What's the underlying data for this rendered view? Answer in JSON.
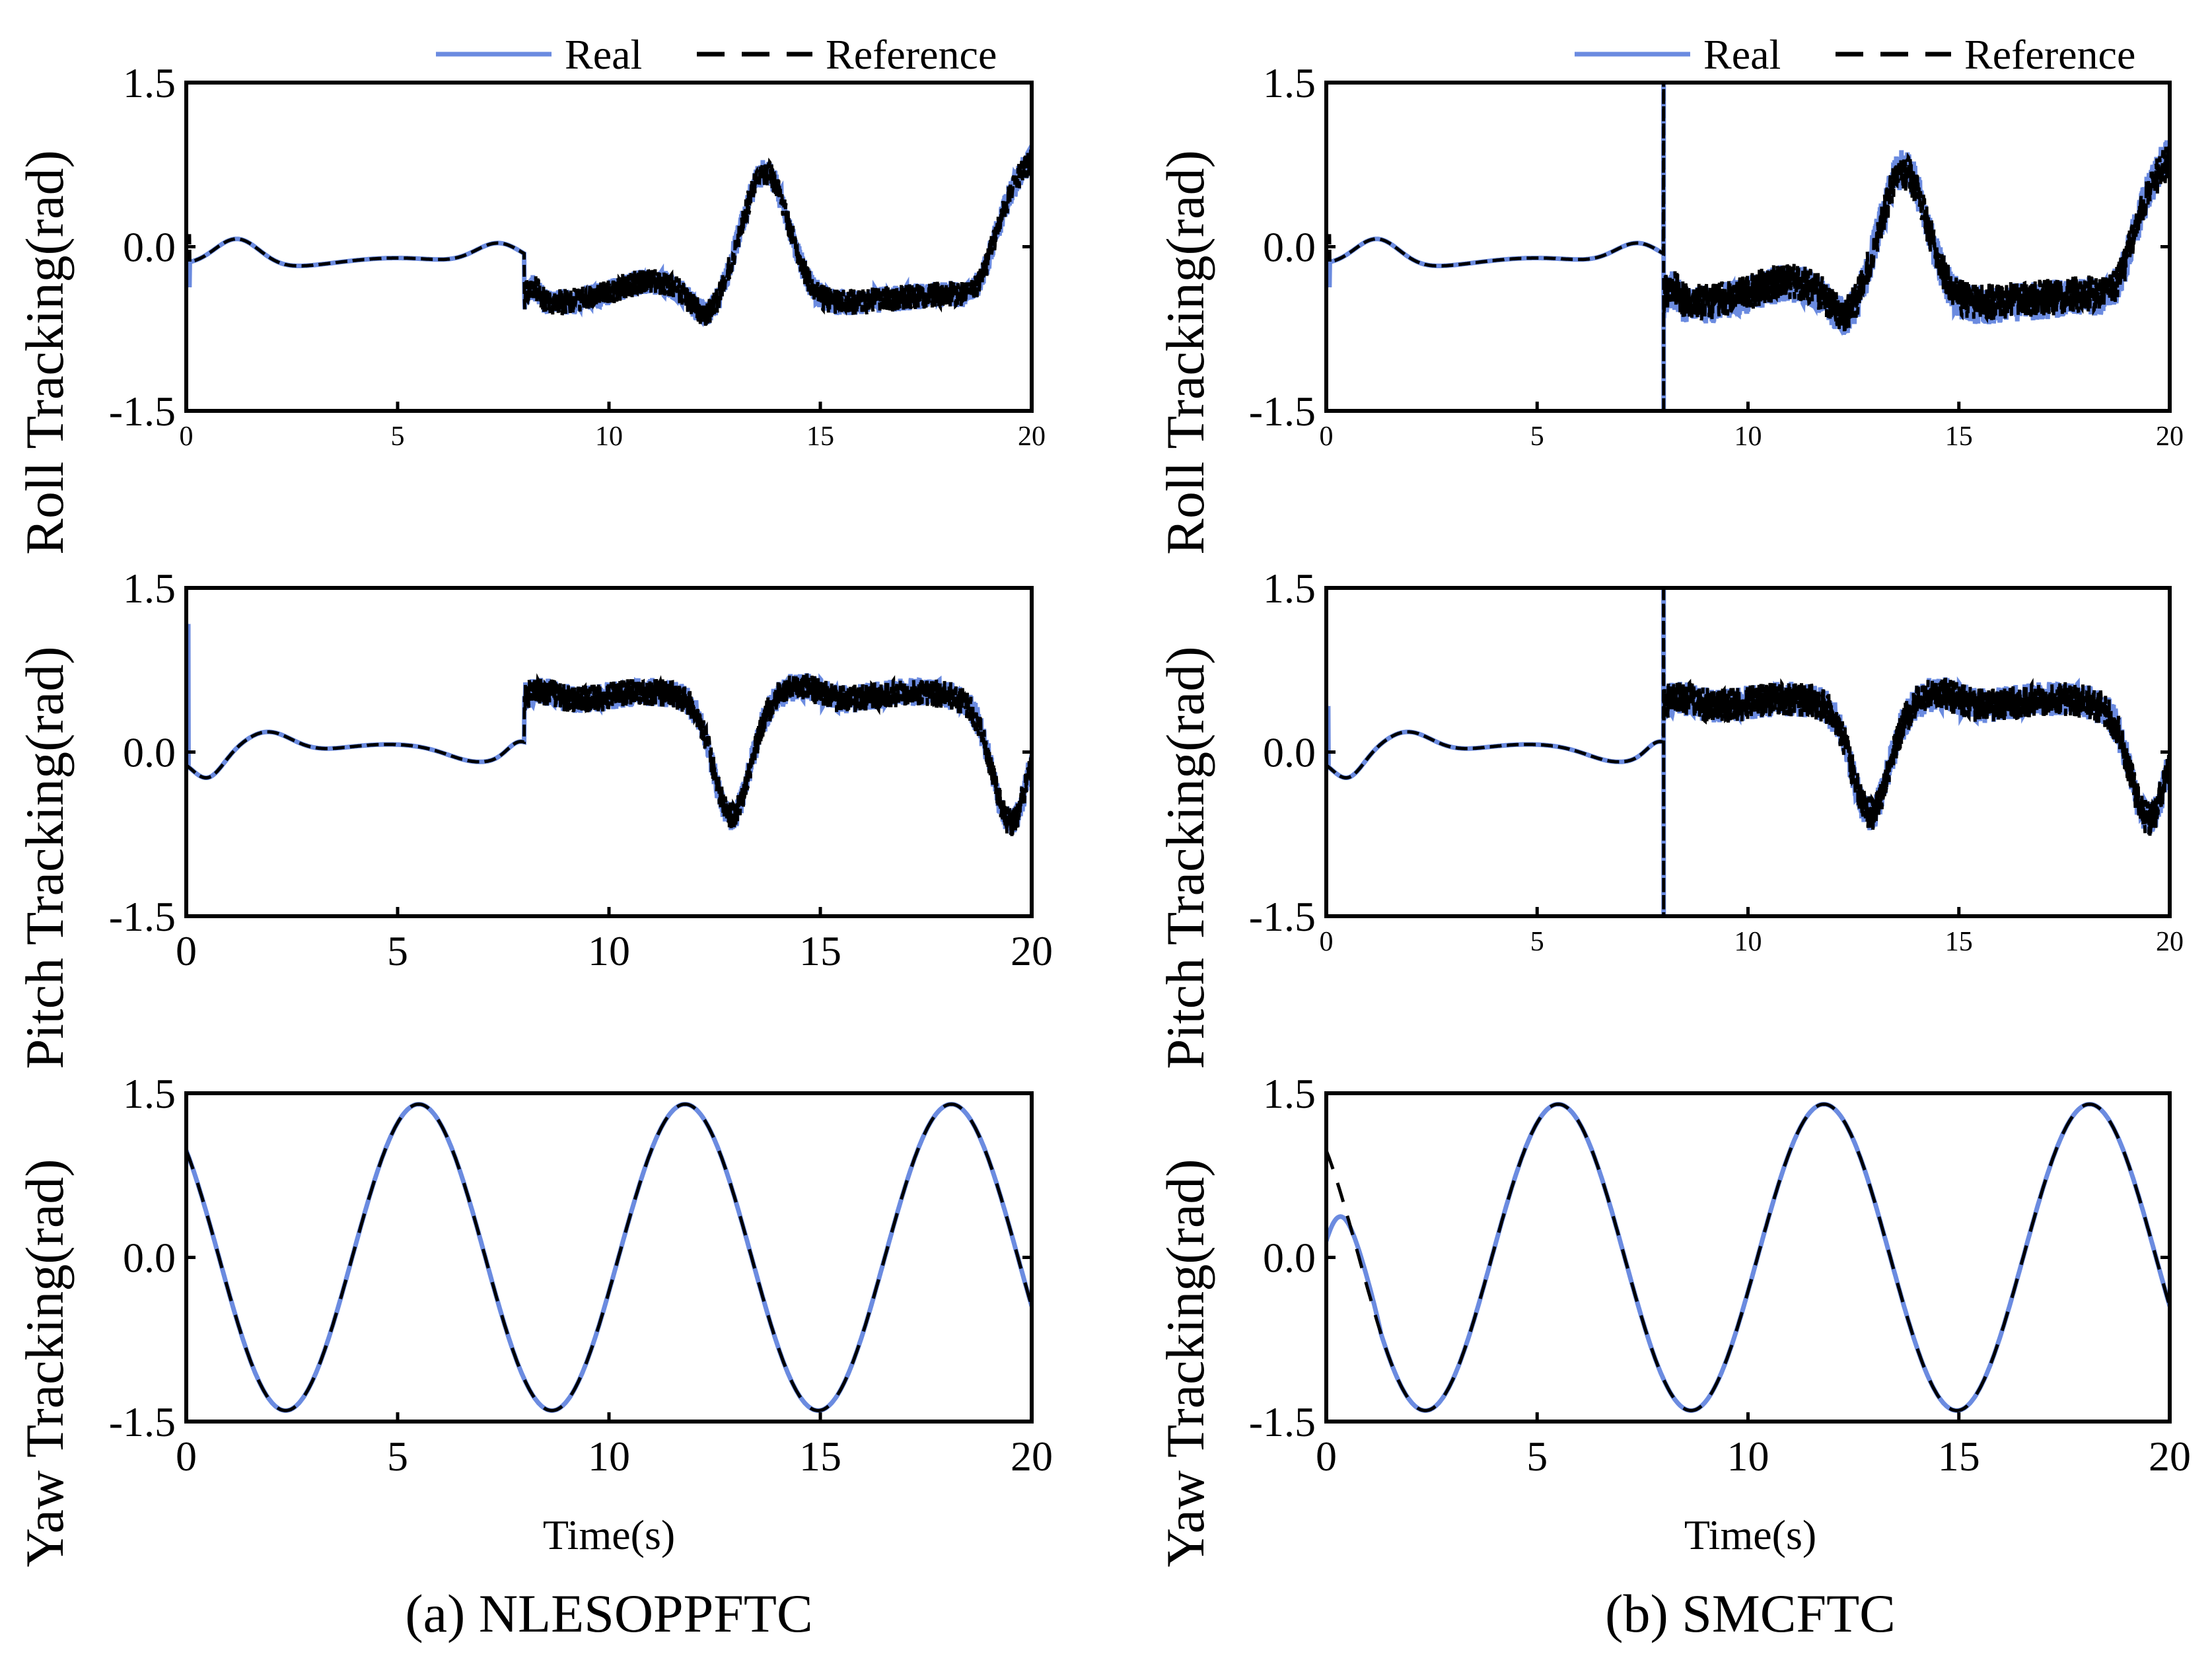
{
  "colors": {
    "real": "#6b8be0",
    "reference": "#000000"
  },
  "legend": {
    "real_label": "Real",
    "reference_label": "Reference"
  },
  "x_title": "Time(s)",
  "captions": {
    "a": "(a) NLESOPPFTC",
    "b": "(b) SMCFTC"
  },
  "chart_data": [
    {
      "id": "a-roll",
      "type": "line",
      "column": "a",
      "ylabel": "Roll Tracking(rad)",
      "xlim": [
        0,
        20
      ],
      "ylim": [
        -1.5,
        1.5
      ],
      "xticks": [
        "0",
        "5",
        "10",
        "15",
        "20"
      ],
      "yticks": [
        "1.5",
        "0.0",
        "-1.5"
      ],
      "series": [
        {
          "name": "Real"
        },
        {
          "name": "Reference"
        }
      ]
    },
    {
      "id": "a-pitch",
      "type": "line",
      "column": "a",
      "ylabel": "Pitch Tracking(rad)",
      "xlim": [
        0,
        20
      ],
      "ylim": [
        -1.5,
        1.5
      ],
      "xticks": [
        "0",
        "5",
        "10",
        "15",
        "20"
      ],
      "yticks": [
        "1.5",
        "0.0",
        "-1.5"
      ],
      "series": [
        {
          "name": "Real"
        },
        {
          "name": "Reference"
        }
      ]
    },
    {
      "id": "a-yaw",
      "type": "line",
      "column": "a",
      "ylabel": "Yaw Tracking(rad)",
      "xlim": [
        0,
        20
      ],
      "ylim": [
        -1.5,
        1.5
      ],
      "xticks": [
        "0",
        "5",
        "10",
        "15",
        "20"
      ],
      "yticks": [
        "1.5",
        "0.0",
        "-1.5"
      ],
      "series": [
        {
          "name": "Real"
        },
        {
          "name": "Reference"
        }
      ]
    },
    {
      "id": "b-roll",
      "type": "line",
      "column": "b",
      "ylabel": "Roll Tracking(rad)",
      "xlim": [
        0,
        20
      ],
      "ylim": [
        -1.5,
        1.5
      ],
      "xticks": [
        "0",
        "5",
        "10",
        "15",
        "20"
      ],
      "yticks": [
        "1.5",
        "0.0",
        "-1.5"
      ],
      "series": [
        {
          "name": "Real"
        },
        {
          "name": "Reference"
        }
      ]
    },
    {
      "id": "b-pitch",
      "type": "line",
      "column": "b",
      "ylabel": "Pitch Tracking(rad)",
      "xlim": [
        0,
        20
      ],
      "ylim": [
        -1.5,
        1.5
      ],
      "xticks": [
        "0",
        "5",
        "10",
        "15",
        "20"
      ],
      "yticks": [
        "1.5",
        "0.0",
        "-1.5"
      ],
      "series": [
        {
          "name": "Real"
        },
        {
          "name": "Reference"
        }
      ]
    },
    {
      "id": "b-yaw",
      "type": "line",
      "column": "b",
      "ylabel": "Yaw Tracking(rad)",
      "xlim": [
        0,
        20
      ],
      "ylim": [
        -1.5,
        1.5
      ],
      "xticks": [
        "0",
        "5",
        "10",
        "15",
        "20"
      ],
      "yticks": [
        "1.5",
        "0.0",
        "-1.5"
      ],
      "series": [
        {
          "name": "Real"
        },
        {
          "name": "Reference"
        }
      ]
    }
  ]
}
